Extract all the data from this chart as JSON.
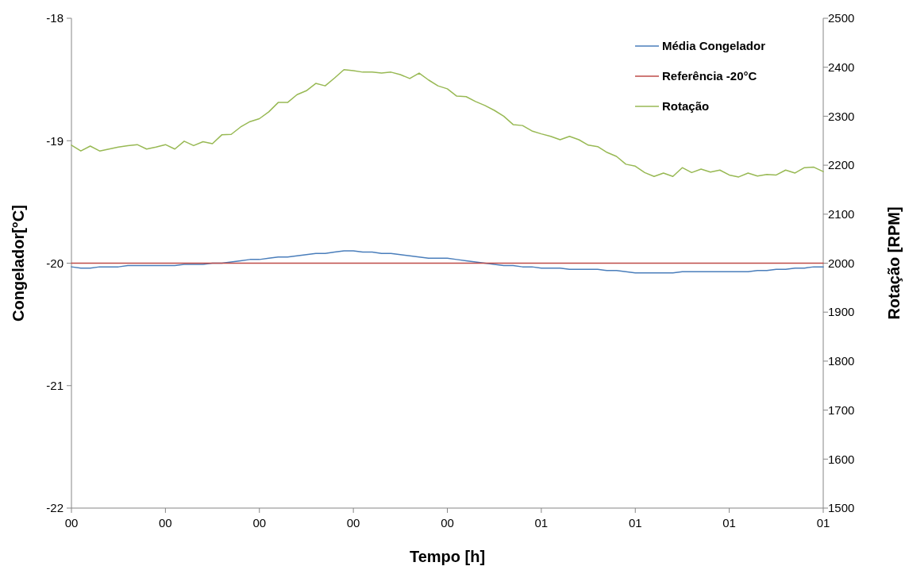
{
  "chart_data": {
    "type": "line",
    "xlabel": "Tempo [h]",
    "ylabel": "Congelador[°C]",
    "y2label": "Rotação [RPM]",
    "categories": [
      "00",
      null,
      null,
      null,
      null,
      null,
      null,
      null,
      null,
      null,
      "00",
      null,
      null,
      null,
      null,
      null,
      null,
      null,
      null,
      null,
      "00",
      null,
      null,
      null,
      null,
      null,
      null,
      null,
      null,
      null,
      "00",
      null,
      null,
      null,
      null,
      null,
      null,
      null,
      null,
      null,
      "00",
      null,
      null,
      null,
      null,
      null,
      null,
      null,
      null,
      null,
      "01",
      null,
      null,
      null,
      null,
      null,
      null,
      null,
      null,
      null,
      "01",
      null,
      null,
      null,
      null,
      null,
      null,
      null,
      null,
      null,
      "01",
      null,
      null,
      null,
      null,
      null,
      null,
      null,
      null,
      null,
      "01"
    ],
    "ylim": [
      -22,
      -18
    ],
    "yticks": [
      -22,
      -21,
      -20,
      -19,
      -18
    ],
    "y2lim": [
      1500,
      2500
    ],
    "y2ticks": [
      1500,
      1600,
      1700,
      1800,
      1900,
      2000,
      2100,
      2200,
      2300,
      2400,
      2500
    ],
    "legend": "top right",
    "line_style": "solid",
    "series": [
      {
        "name": "Média Congelador",
        "color": "#4a7ebb",
        "values": [
          -20.03,
          -20.04,
          -20.04,
          -20.03,
          -20.03,
          -20.03,
          -20.02,
          -20.02,
          -20.02,
          -20.02,
          -20.02,
          -20.02,
          -20.01,
          -20.01,
          -20.01,
          -20.0,
          -20.0,
          -19.99,
          -19.98,
          -19.97,
          -19.97,
          -19.96,
          -19.95,
          -19.95,
          -19.94,
          -19.93,
          -19.92,
          -19.92,
          -19.91,
          -19.9,
          -19.9,
          -19.91,
          -19.91,
          -19.92,
          -19.92,
          -19.93,
          -19.94,
          -19.95,
          -19.96,
          -19.96,
          -19.96,
          -19.97,
          -19.98,
          -19.99,
          -20.0,
          -20.01,
          -20.02,
          -20.02,
          -20.03,
          -20.03,
          -20.04,
          -20.04,
          -20.04,
          -20.05,
          -20.05,
          -20.05,
          -20.05,
          -20.06,
          -20.06,
          -20.07,
          -20.08,
          -20.08,
          -20.08,
          -20.08,
          -20.08,
          -20.07,
          -20.07,
          -20.07,
          -20.07,
          -20.07,
          -20.07,
          -20.07,
          -20.07,
          -20.06,
          -20.06,
          -20.05,
          -20.05,
          -20.04,
          -20.04,
          -20.03,
          -20.03
        ]
      },
      {
        "name": "Referência -20°C",
        "color": "#be4b48",
        "values": [
          -20,
          -20,
          -20,
          -20,
          -20,
          -20,
          -20,
          -20,
          -20,
          -20,
          -20,
          -20,
          -20,
          -20,
          -20,
          -20,
          -20,
          -20,
          -20,
          -20,
          -20,
          -20,
          -20,
          -20,
          -20,
          -20,
          -20,
          -20,
          -20,
          -20,
          -20,
          -20,
          -20,
          -20,
          -20,
          -20,
          -20,
          -20,
          -20,
          -20,
          -20,
          -20,
          -20,
          -20,
          -20,
          -20,
          -20,
          -20,
          -20,
          -20,
          -20,
          -20,
          -20,
          -20,
          -20,
          -20,
          -20,
          -20,
          -20,
          -20,
          -20,
          -20,
          -20,
          -20,
          -20,
          -20,
          -20,
          -20,
          -20,
          -20,
          -20,
          -20,
          -20,
          -20,
          -20,
          -20,
          -20,
          -20,
          -20,
          -20,
          -20
        ]
      },
      {
        "name": "Rotação",
        "color": "#98b954",
        "axis": "y2",
        "values": [
          2241,
          2229,
          2239,
          2229,
          2233,
          2237,
          2240,
          2242,
          2233,
          2237,
          2242,
          2233,
          2249,
          2240,
          2248,
          2244,
          2262,
          2263,
          2278,
          2289,
          2295,
          2309,
          2328,
          2328,
          2344,
          2352,
          2367,
          2362,
          2378,
          2395,
          2393,
          2390,
          2390,
          2388,
          2390,
          2385,
          2377,
          2388,
          2374,
          2362,
          2356,
          2341,
          2340,
          2330,
          2322,
          2312,
          2300,
          2283,
          2281,
          2270,
          2264,
          2259,
          2252,
          2259,
          2252,
          2241,
          2238,
          2226,
          2218,
          2202,
          2198,
          2185,
          2177,
          2184,
          2177,
          2195,
          2185,
          2192,
          2186,
          2190,
          2180,
          2176,
          2184,
          2178,
          2181,
          2180,
          2190,
          2184,
          2195,
          2196,
          2187
        ]
      }
    ]
  }
}
